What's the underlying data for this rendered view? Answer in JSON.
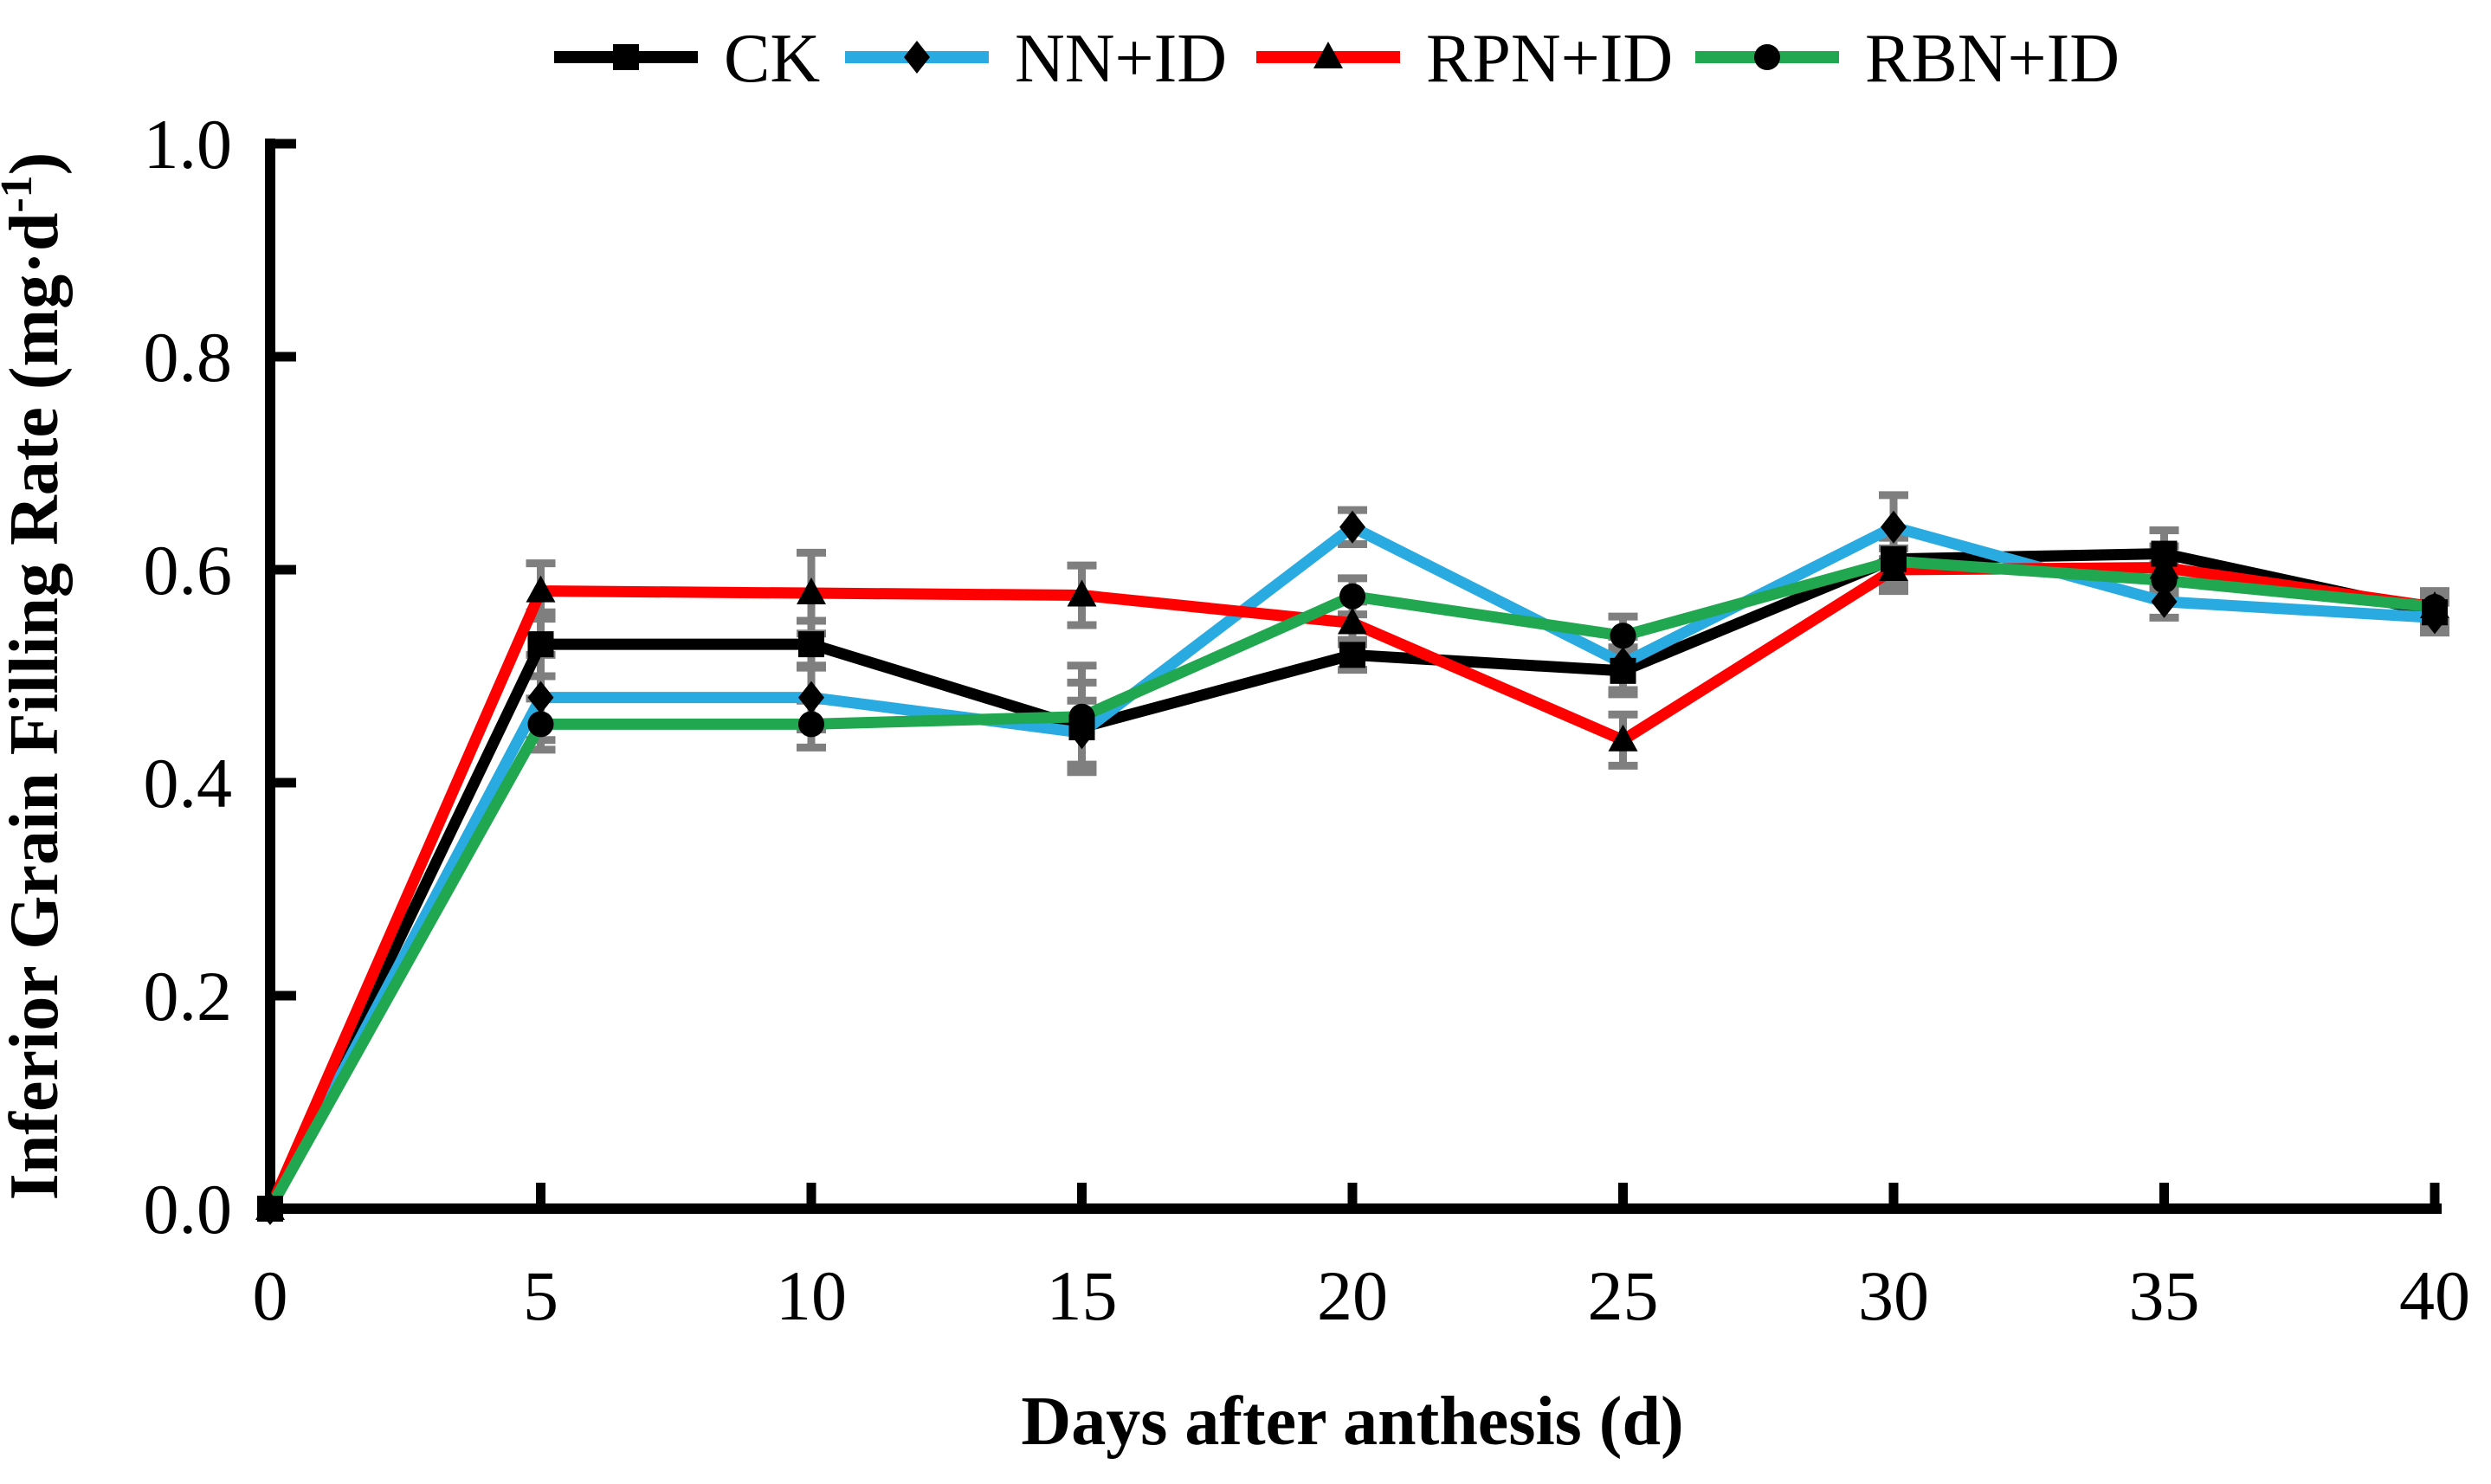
{
  "figure": {
    "background": "#FFFFFF"
  },
  "chart_data": {
    "type": "line",
    "title": "",
    "xlabel": "Days after anthesis (d)",
    "ylabel": "Inferior Grain Filling Rate (mg·d⁻¹)",
    "ylabel_parts": {
      "main": "Inferior Grain Filling Rate (mg·d",
      "sup": "-1",
      "tail": ")"
    },
    "xlim": [
      0,
      40
    ],
    "ylim": [
      0.0,
      1.0
    ],
    "xticks": [
      0,
      5,
      10,
      15,
      20,
      25,
      30,
      35,
      40
    ],
    "xtick_labels": [
      "0",
      "5",
      "10",
      "15",
      "20",
      "25",
      "30",
      "35",
      "40"
    ],
    "yticks": [
      0.0,
      0.2,
      0.4,
      0.6,
      0.8,
      1.0
    ],
    "ytick_labels": [
      "0.0",
      "0.2",
      "0.4",
      "0.6",
      "0.8",
      "1.0"
    ],
    "grid": false,
    "legend_position": "top-center",
    "marker_fill": "#000000",
    "error_bar_color": "#7F7F7F",
    "axis_color": "#000000",
    "x": [
      0,
      5,
      10,
      15,
      20,
      25,
      30,
      35,
      40
    ],
    "series": [
      {
        "name": "CK",
        "color": "#000000",
        "marker": "square",
        "values": [
          0.0,
          0.53,
          0.53,
          0.452,
          0.52,
          0.505,
          0.61,
          0.615,
          0.56
        ],
        "errors": [
          0,
          0.03,
          0.022,
          0.042,
          0.014,
          0.022,
          0.025,
          0.022,
          0.015
        ]
      },
      {
        "name": "NN+ID",
        "color": "#29ABE2",
        "marker": "diamond",
        "values": [
          0.0,
          0.48,
          0.48,
          0.447,
          0.64,
          0.512,
          0.64,
          0.57,
          0.555
        ],
        "errors": [
          0,
          0.04,
          0.03,
          0.03,
          0.016,
          0.025,
          0.03,
          0.015,
          0.014
        ]
      },
      {
        "name": "RPN+ID",
        "color": "#FF0000",
        "marker": "triangle",
        "values": [
          0.0,
          0.58,
          0.578,
          0.576,
          0.55,
          0.44,
          0.6,
          0.602,
          0.565
        ],
        "errors": [
          0,
          0.026,
          0.038,
          0.028,
          0.02,
          0.024,
          0.02,
          0.02,
          0.015
        ]
      },
      {
        "name": "RBN+ID",
        "color": "#21A74F",
        "marker": "circle",
        "values": [
          0.0,
          0.455,
          0.455,
          0.462,
          0.575,
          0.538,
          0.608,
          0.59,
          0.565
        ],
        "errors": [
          0,
          0.024,
          0.022,
          0.048,
          0.017,
          0.018,
          0.022,
          0.015,
          0.014
        ]
      }
    ]
  }
}
